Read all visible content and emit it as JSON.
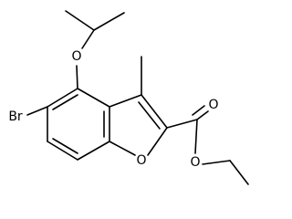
{
  "atoms": [
    {
      "label": "Br"
    },
    {
      "label": "O"
    },
    {
      "label": "O"
    },
    {
      "label": "O"
    },
    {
      "label": "O"
    }
  ]
}
